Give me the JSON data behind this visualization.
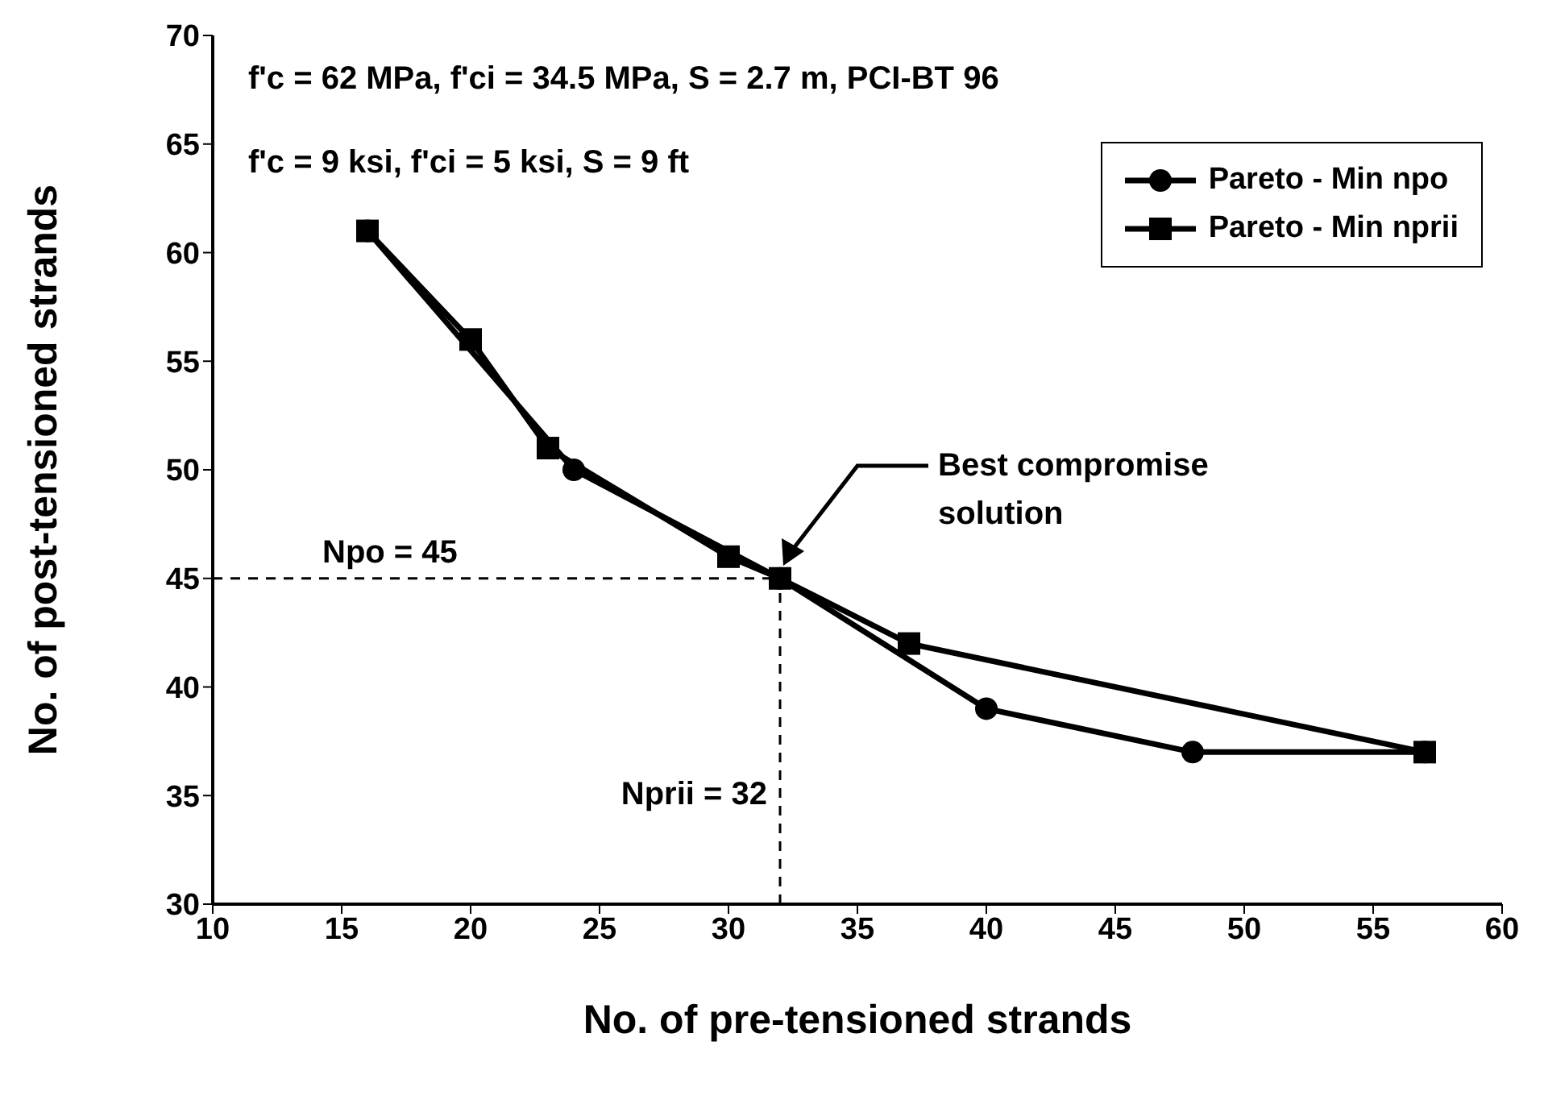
{
  "chart_data": {
    "type": "line",
    "xlabel": "No. of pre-tensioned strands",
    "ylabel": "No. of post-tensioned strands",
    "xlim": [
      10,
      60
    ],
    "xticks": [
      10,
      15,
      20,
      25,
      30,
      35,
      40,
      45,
      50,
      55,
      60
    ],
    "ylim": [
      30,
      70
    ],
    "yticks": [
      30,
      35,
      40,
      45,
      50,
      55,
      60,
      65,
      70
    ],
    "grid": false,
    "legend": "top right",
    "series": [
      {
        "name": "Pareto - Min npo",
        "color": "#000000",
        "marker": "circle",
        "x": [
          16,
          24,
          32,
          40,
          48,
          57
        ],
        "values": [
          61,
          50,
          45,
          39,
          37,
          37
        ]
      },
      {
        "name": "Pareto - Min nprii",
        "color": "#000000",
        "marker": "square",
        "x": [
          16,
          20,
          23,
          30,
          32,
          37,
          57
        ],
        "values": [
          61,
          56,
          51,
          46,
          45,
          42,
          37
        ]
      }
    ],
    "ref_lines": [
      {
        "axis": "y",
        "value": 45,
        "label": "Npo = 45",
        "line_style": "dashed",
        "color": "#000000"
      },
      {
        "axis": "x",
        "value": 32,
        "label": "Nprii = 32",
        "line_style": "dashed",
        "color": "#000000"
      }
    ],
    "annotations": [
      "f'c = 62 MPa, f'ci = 34.5 MPa, S = 2.7 m, PCI-BT 96",
      "f'c = 9 ksi, f'ci = 5 ksi, S = 9 ft",
      "Best compromise solution"
    ]
  }
}
